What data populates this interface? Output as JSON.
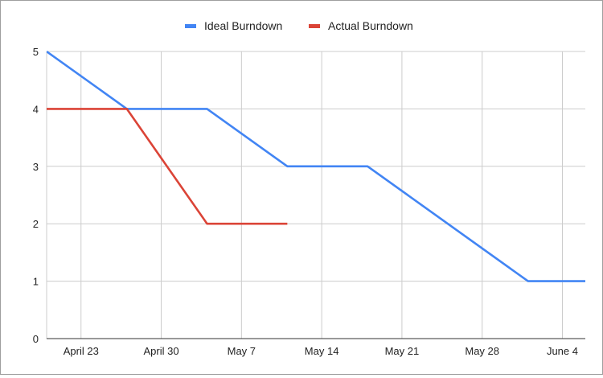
{
  "chart_data": {
    "type": "line",
    "title": "",
    "xlabel": "",
    "ylabel": "",
    "ylim": [
      0,
      5
    ],
    "yticks": [
      "0",
      "1",
      "2",
      "3",
      "4",
      "5"
    ],
    "xticks": [
      {
        "label": "April 23",
        "date": "2019-04-23"
      },
      {
        "label": "April 30",
        "date": "2019-04-30"
      },
      {
        "label": "May 7",
        "date": "2019-05-07"
      },
      {
        "label": "May 14",
        "date": "2019-05-14"
      },
      {
        "label": "May 21",
        "date": "2019-05-21"
      },
      {
        "label": "May 28",
        "date": "2019-05-28"
      },
      {
        "label": "June 4",
        "date": "2019-06-04"
      }
    ],
    "xlim": [
      "2019-04-20",
      "2019-06-06"
    ],
    "grid": true,
    "legend_position": "top",
    "series": [
      {
        "name": "Ideal Burndown",
        "color": "#4285f4",
        "points": [
          {
            "x": "2019-04-20",
            "y": 5
          },
          {
            "x": "2019-04-27",
            "y": 4
          },
          {
            "x": "2019-05-04",
            "y": 4
          },
          {
            "x": "2019-05-11",
            "y": 3
          },
          {
            "x": "2019-05-18",
            "y": 3
          },
          {
            "x": "2019-06-01",
            "y": 1
          },
          {
            "x": "2019-06-08",
            "y": 1
          }
        ]
      },
      {
        "name": "Actual Burndown",
        "color": "#db4437",
        "points": [
          {
            "x": "2019-04-20",
            "y": 4
          },
          {
            "x": "2019-04-27",
            "y": 4
          },
          {
            "x": "2019-05-04",
            "y": 2
          },
          {
            "x": "2019-05-11",
            "y": 2
          }
        ]
      }
    ]
  }
}
